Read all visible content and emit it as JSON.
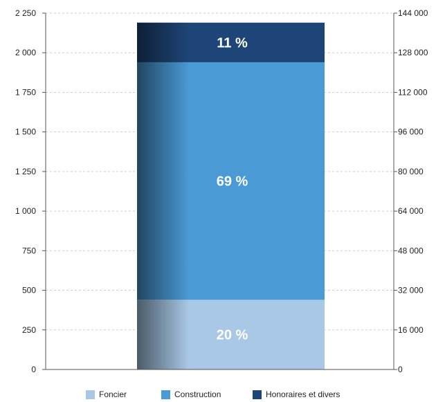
{
  "chart_data": {
    "type": "bar",
    "stacked": true,
    "left_axis": {
      "ylim": [
        0,
        2250
      ],
      "ticks": [
        0,
        250,
        500,
        750,
        1000,
        1250,
        1500,
        1750,
        2000,
        2250
      ],
      "tick_labels": [
        "0",
        "250",
        "500",
        "750",
        "1 000",
        "1 250",
        "1 500",
        "1 750",
        "2 000",
        "2 250"
      ]
    },
    "right_axis": {
      "ylim": [
        0,
        144000
      ],
      "ticks": [
        0,
        16000,
        32000,
        48000,
        64000,
        80000,
        96000,
        112000,
        128000,
        144000
      ],
      "tick_labels": [
        "0",
        "16 000",
        "32 000",
        "48 000",
        "64 000",
        "80 000",
        "96 000",
        "112 000",
        "128 000",
        "144 000"
      ]
    },
    "grid": true,
    "legend_position": "bottom",
    "series": [
      {
        "name": "Foncier",
        "value": 440,
        "label": "20 %",
        "color": "#a8c8e6"
      },
      {
        "name": "Construction",
        "value": 1500,
        "label": "69 %",
        "color": "#4a9ad6"
      },
      {
        "name": "Honoraires et divers",
        "value": 250,
        "label": "11 %",
        "color": "#1e4577"
      }
    ]
  }
}
